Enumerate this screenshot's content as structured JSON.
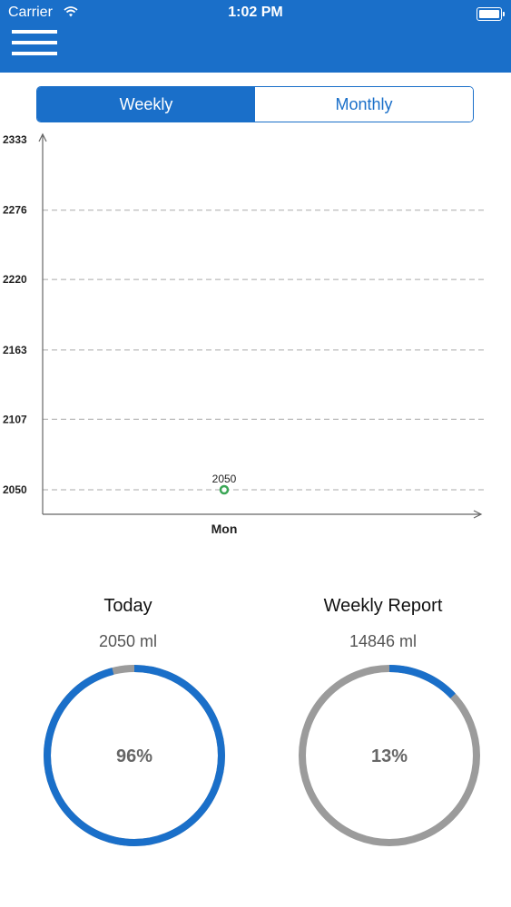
{
  "status_bar": {
    "carrier": "Carrier",
    "time": "1:02 PM"
  },
  "tabs": [
    {
      "label": "Weekly",
      "active": true
    },
    {
      "label": "Monthly",
      "active": false
    }
  ],
  "chart_data": {
    "type": "line",
    "categories": [
      "Mon"
    ],
    "series": [
      {
        "values": [
          2050
        ]
      }
    ],
    "data_labels": [
      "2050"
    ],
    "ytick_labels": [
      "2050",
      "2107",
      "2163",
      "2220",
      "2276",
      "2333"
    ],
    "ylim": [
      2050,
      2333
    ],
    "grid": true,
    "xlabel": "",
    "ylabel": "",
    "marker_color": "#3aa655",
    "grid_color": "#aaaaaa"
  },
  "today": {
    "title": "Today",
    "value": "2050 ml",
    "percent_label": "96%",
    "fraction": 0.96
  },
  "weekly_report": {
    "title": "Weekly Report",
    "value": "14846 ml",
    "percent_label": "13%",
    "fraction": 0.13
  },
  "colors": {
    "primary": "#1a6fc9",
    "track": "#9b9b9b"
  }
}
